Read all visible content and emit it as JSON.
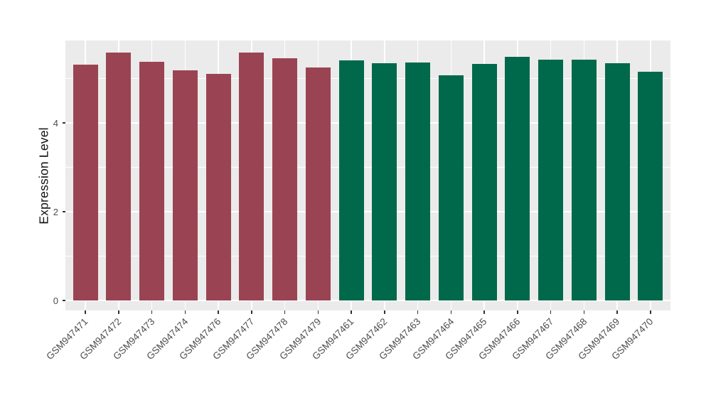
{
  "chart_data": {
    "type": "bar",
    "title": "",
    "xlabel": "",
    "ylabel": "Expression Level",
    "categories": [
      "GSM947471",
      "GSM947472",
      "GSM947473",
      "GSM947474",
      "GSM947476",
      "GSM947477",
      "GSM947478",
      "GSM947479",
      "GSM947461",
      "GSM947462",
      "GSM947463",
      "GSM947464",
      "GSM947465",
      "GSM947466",
      "GSM947467",
      "GSM947468",
      "GSM947469",
      "GSM947470"
    ],
    "values": [
      5.32,
      5.58,
      5.37,
      5.18,
      5.1,
      5.58,
      5.45,
      5.25,
      5.41,
      5.34,
      5.36,
      5.07,
      5.33,
      5.49,
      5.43,
      5.43,
      5.34,
      5.16
    ],
    "bar_groups": [
      "group1",
      "group1",
      "group1",
      "group1",
      "group1",
      "group1",
      "group1",
      "group1",
      "group2",
      "group2",
      "group2",
      "group2",
      "group2",
      "group2",
      "group2",
      "group2",
      "group2",
      "group2"
    ],
    "group_colors": {
      "group1": "#9A4453",
      "group2": "#00694B"
    },
    "yticks": [
      0,
      2,
      4
    ],
    "ytick_labels": [
      "0",
      "2",
      "4"
    ],
    "yminor": [
      1,
      3,
      5
    ],
    "ylim": [
      0,
      5.86
    ],
    "x_label_angle_deg": 45,
    "legend": "none",
    "grid": true,
    "panel_bg": "#EBEBEB",
    "grid_color": "#FFFFFF",
    "tick_color": "#333333",
    "axis_text_color": "#4D4D4D",
    "axis_title_color": "#111111"
  }
}
